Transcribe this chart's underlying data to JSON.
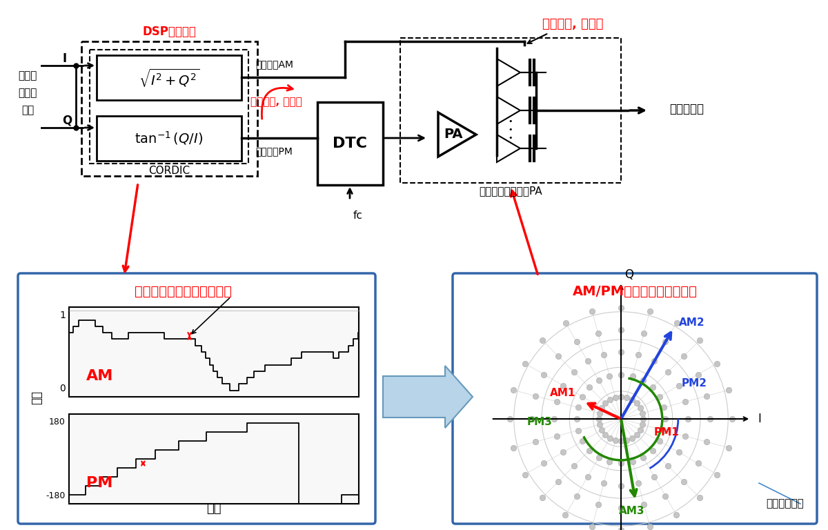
{
  "bg_color": "#ffffff",
  "dsp_label": "DSP消費電力",
  "pa_label": "電力損失, 非線形",
  "dtc_label": "消費電力, 非線形",
  "cordic_label": "CORDIC",
  "multibit_am": "多ビットAM",
  "multibit_pm": "多ビットPM",
  "multibit_pa": "多ビットデジタルPA",
  "fc_label": "fc",
  "antenna_label": "アンテナへ",
  "baseband_label": [
    "ベース",
    "バンド",
    "から"
  ],
  "I_label": "I",
  "Q_label": "Q",
  "sqrt_formula": "$\\sqrt{I^2+Q^2}$",
  "atan_formula": "$\\tan^{-1}(Q/I)$",
  "DTC_label": "DTC",
  "PA_label": "PA",
  "left_panel_title": "振幅方向に多ビット量子化",
  "right_panel_title": "AM/PMの組み合わせは多数",
  "toriuru_label": "取りうる状態",
  "am_label": "AM",
  "pm_label": "PM",
  "jikan_label": "時間",
  "fuku_label": "振幅",
  "am1_label": "AM1",
  "am2_label": "AM2",
  "am3_label": "AM3",
  "pm1_label": "PM1",
  "pm2_label": "PM2",
  "pm3_label": "PM3",
  "Q_axis": "Q",
  "I_axis": "I"
}
